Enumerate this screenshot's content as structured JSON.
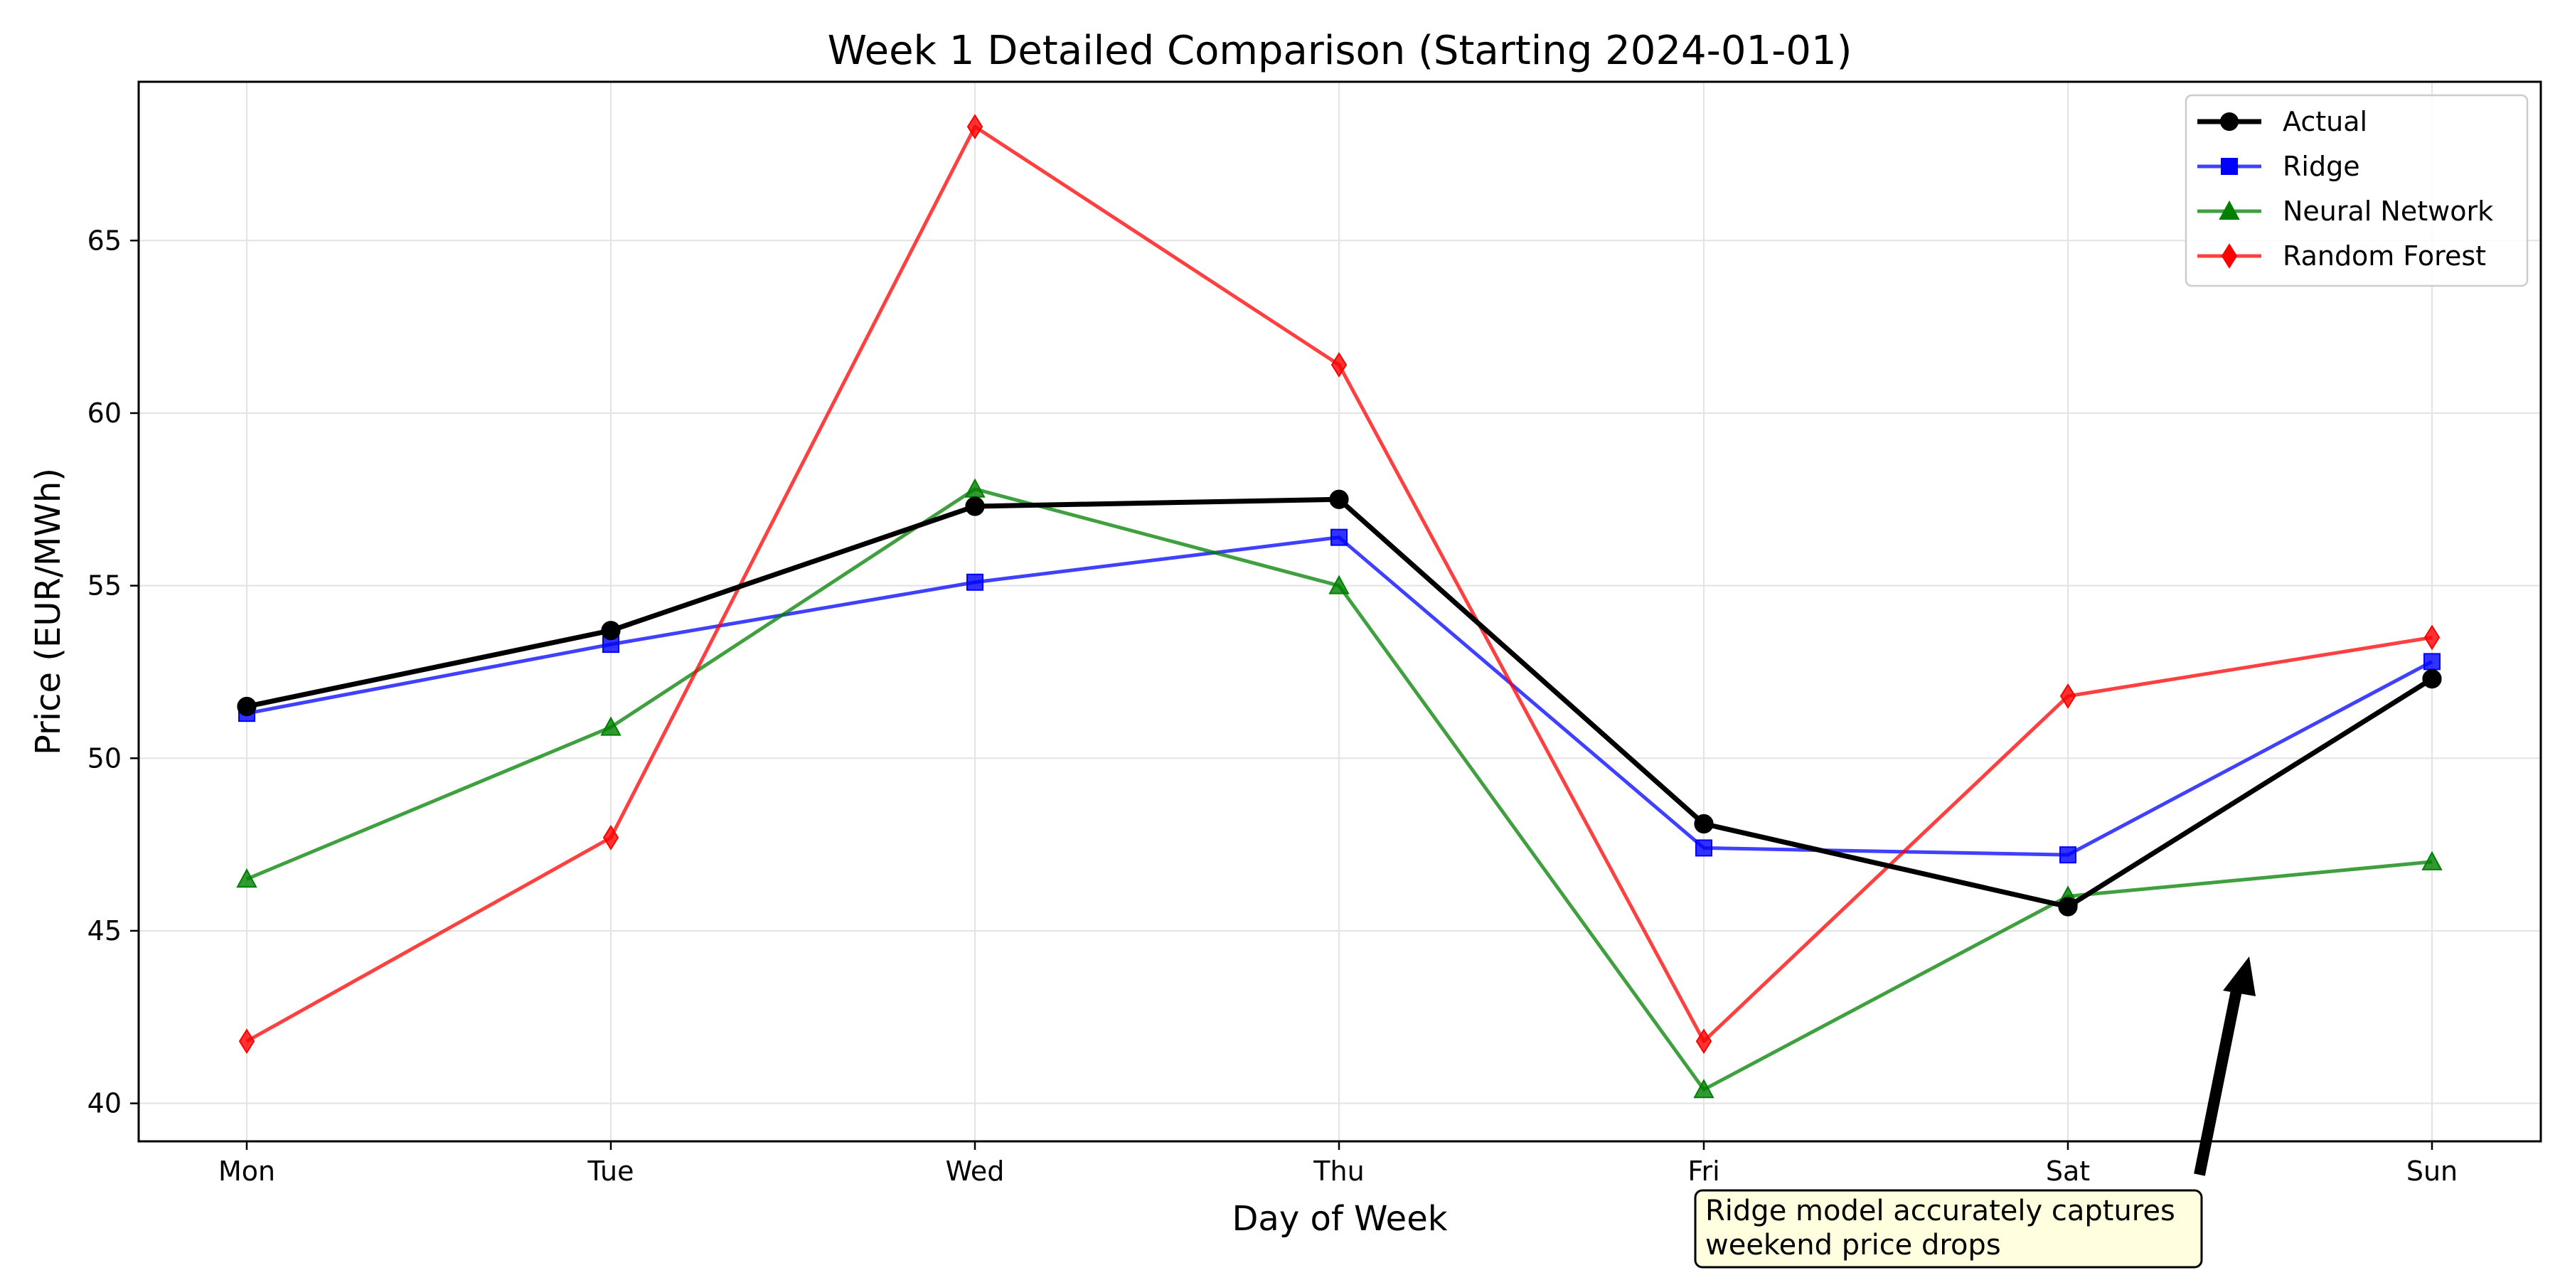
{
  "chart_data": {
    "type": "line",
    "title": "Week 1 Detailed Comparison (Starting 2024-01-01)",
    "xlabel": "Day of Week",
    "ylabel": "Price (EUR/MWh)",
    "categories": [
      "Mon",
      "Tue",
      "Wed",
      "Thu",
      "Fri",
      "Sat",
      "Sun"
    ],
    "ylim": [
      38.9,
      69.6
    ],
    "yticks": [
      40,
      45,
      50,
      55,
      60,
      65
    ],
    "grid": true,
    "legend_position": "top-right",
    "series": [
      {
        "name": "Actual",
        "color": "#000000",
        "marker": "circle",
        "values": [
          51.5,
          53.7,
          57.3,
          57.5,
          48.1,
          45.7,
          52.3
        ]
      },
      {
        "name": "Ridge",
        "color": "#0000ff",
        "marker": "square",
        "values": [
          51.3,
          53.3,
          55.1,
          56.4,
          47.4,
          47.2,
          52.8
        ]
      },
      {
        "name": "Neural Network",
        "color": "#008000",
        "marker": "triangle",
        "values": [
          46.5,
          50.9,
          57.8,
          55.0,
          40.4,
          46.0,
          47.0
        ]
      },
      {
        "name": "Random Forest",
        "color": "#ff0000",
        "marker": "diamond",
        "values": [
          41.8,
          47.7,
          68.3,
          61.4,
          41.8,
          51.8,
          53.5
        ]
      }
    ],
    "annotation": {
      "text_lines": [
        "Ridge model accurately captures",
        "weekend price drops"
      ],
      "target": {
        "x": "Sat",
        "y": 44.2
      },
      "box_fill": "#ffffe0"
    }
  }
}
